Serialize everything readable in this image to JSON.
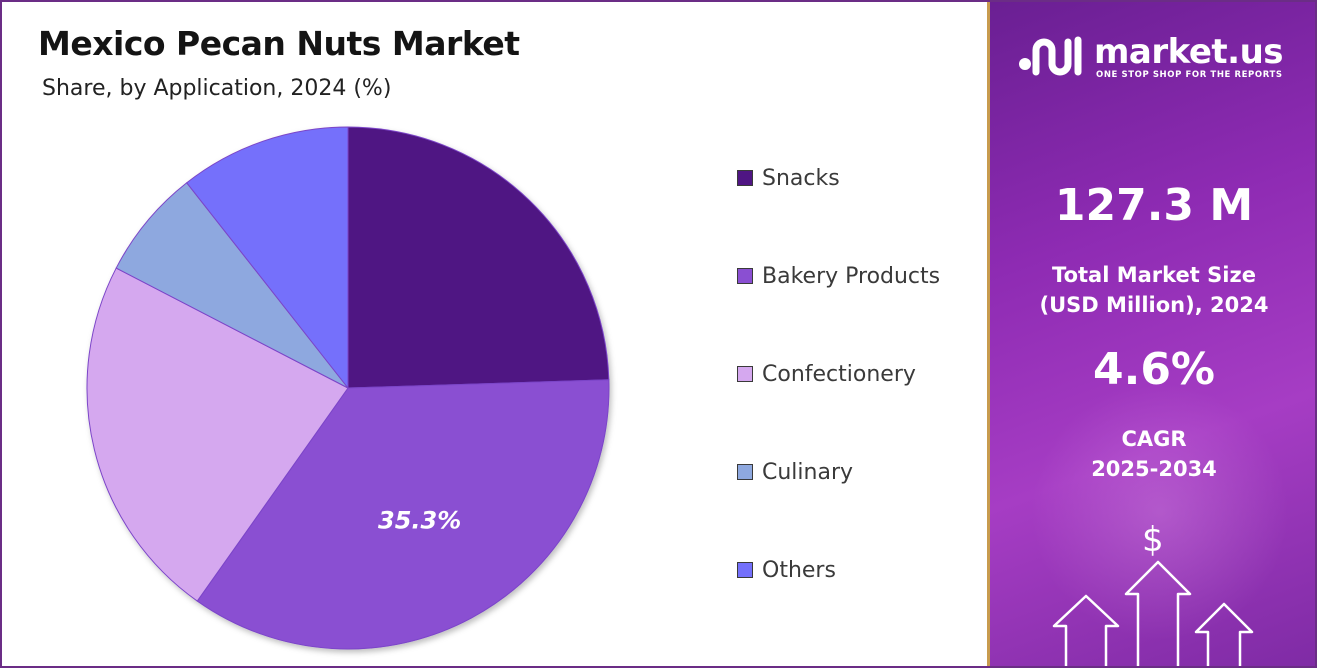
{
  "header": {
    "title": "Mexico Pecan Nuts Market",
    "subtitle": "Share, by Application, 2024 (%)"
  },
  "chart_data": {
    "type": "pie",
    "title": "Mexico Pecan Nuts Market",
    "subtitle": "Share, by Application, 2024 (%)",
    "categories": [
      "Snacks",
      "Bakery Products",
      "Confectionery",
      "Culinary",
      "Others"
    ],
    "values": [
      24.5,
      35.3,
      22.8,
      6.8,
      10.6
    ],
    "colors": [
      "#4f1583",
      "#8a4fd2",
      "#d5a8ef",
      "#8ea8df",
      "#7470fb"
    ],
    "data_labels": [
      {
        "category": "Bakery Products",
        "text": "35.3%"
      }
    ],
    "legend_position": "right"
  },
  "brand": {
    "name": "market.us",
    "tagline": "ONE STOP SHOP FOR THE REPORTS"
  },
  "stats": {
    "market_size_value": "127.3 M",
    "market_size_label_line1": "Total Market Size",
    "market_size_label_line2": "(USD Million), 2024",
    "cagr_value": "4.6%",
    "cagr_label_line1": "CAGR",
    "cagr_label_line2": "2025-2034",
    "currency_symbol": "$"
  }
}
